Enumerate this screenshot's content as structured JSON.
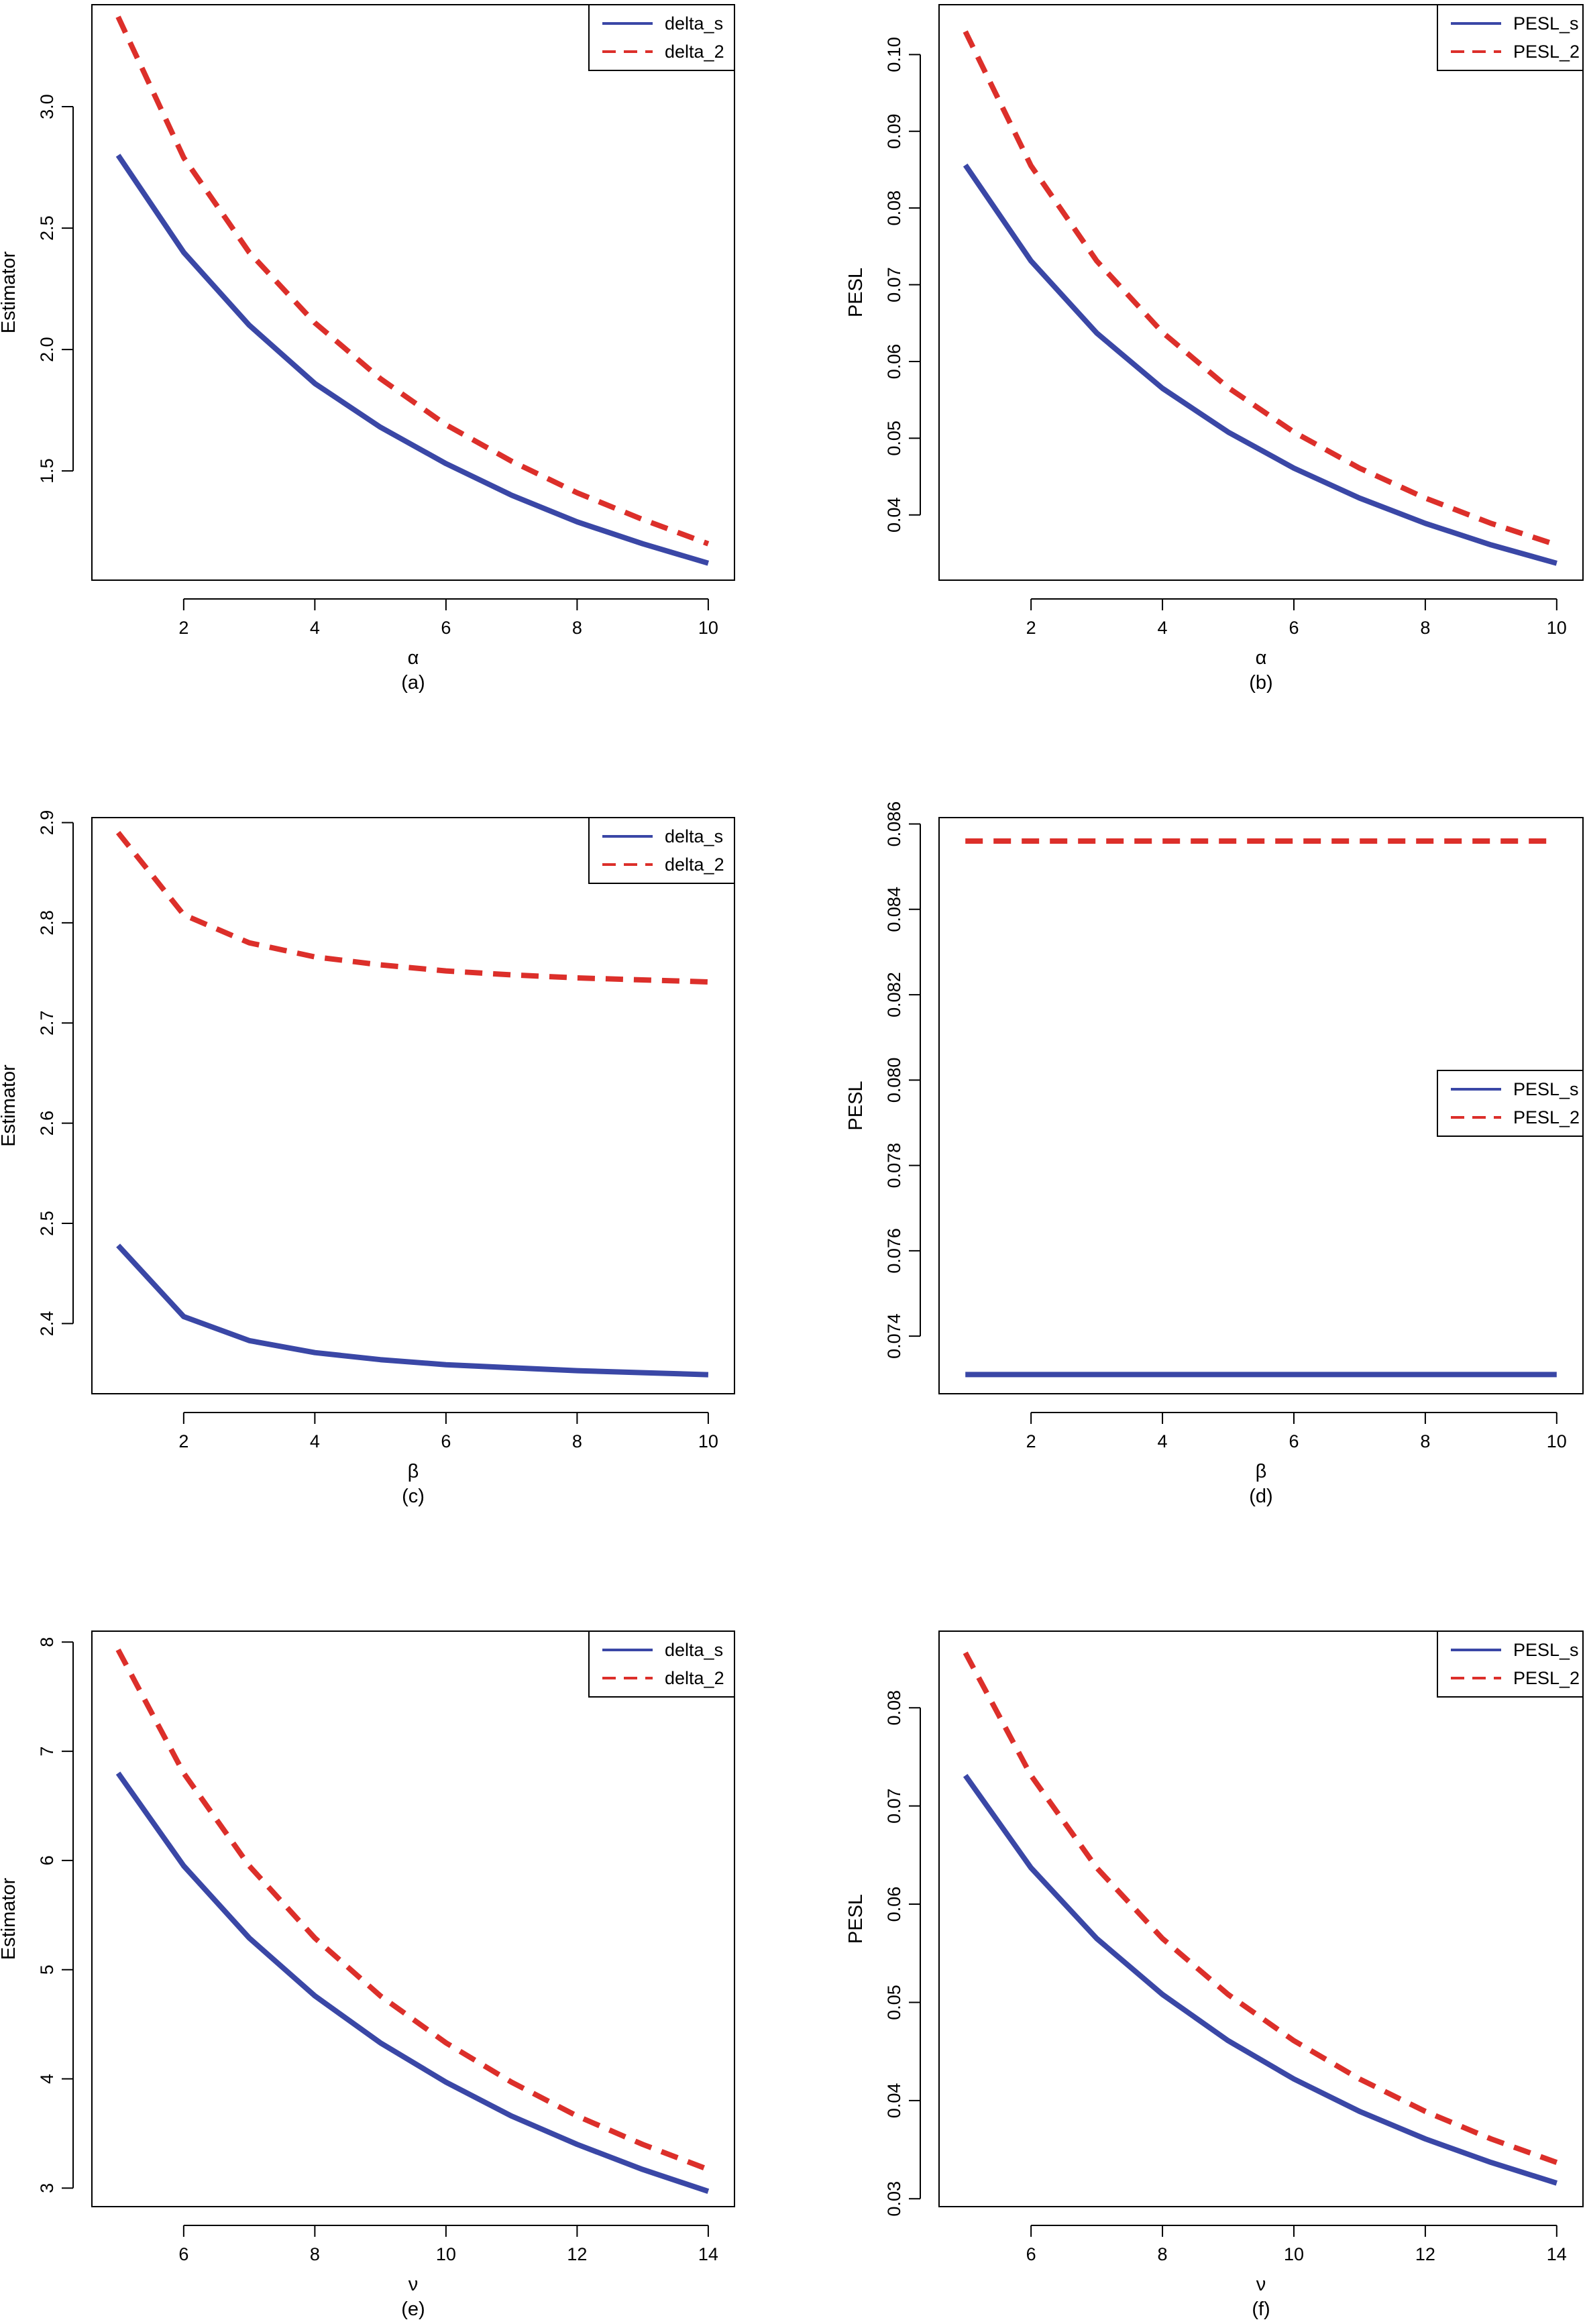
{
  "colors": {
    "s": "#3a47a6",
    "two": "#dc2f2a",
    "axis": "#000000"
  },
  "chart_data": [
    {
      "id": "a",
      "panel_label": "(a)",
      "type": "line",
      "xlabel": "α",
      "ylabel": "Estimator",
      "xlim": [
        0.6,
        10.4
      ],
      "ylim": [
        1.05,
        3.42
      ],
      "xticks": [
        2,
        4,
        6,
        8,
        10
      ],
      "yticks": [
        1.5,
        2.0,
        2.5,
        3.0
      ],
      "ytick_labels": [
        "1.5",
        "2.0",
        "2.5",
        "3.0"
      ],
      "legend": {
        "position": "top-right"
      },
      "x": [
        1,
        2,
        3,
        4,
        5,
        6,
        7,
        8,
        9,
        10
      ],
      "series": [
        {
          "name": "delta_s",
          "style": "solid",
          "values": [
            2.8,
            2.4,
            2.1,
            1.86,
            1.68,
            1.53,
            1.4,
            1.29,
            1.2,
            1.12
          ]
        },
        {
          "name": "delta_2",
          "style": "dashed",
          "values": [
            3.37,
            2.79,
            2.4,
            2.11,
            1.88,
            1.69,
            1.54,
            1.41,
            1.3,
            1.2
          ]
        }
      ]
    },
    {
      "id": "b",
      "panel_label": "(b)",
      "type": "line",
      "xlabel": "α",
      "ylabel": "PESL",
      "xlim": [
        0.6,
        10.4
      ],
      "ylim": [
        0.0315,
        0.1065
      ],
      "xticks": [
        2,
        4,
        6,
        8,
        10
      ],
      "yticks": [
        0.04,
        0.05,
        0.06,
        0.07,
        0.08,
        0.09,
        0.1
      ],
      "ytick_labels": [
        "0.04",
        "0.05",
        "0.06",
        "0.07",
        "0.08",
        "0.09",
        "0.10"
      ],
      "legend": {
        "position": "top-right"
      },
      "x": [
        1,
        2,
        3,
        4,
        5,
        6,
        7,
        8,
        9,
        10
      ],
      "series": [
        {
          "name": "PESL_s",
          "style": "solid",
          "values": [
            0.0856,
            0.0731,
            0.0637,
            0.0565,
            0.0508,
            0.0461,
            0.0422,
            0.0389,
            0.0361,
            0.0337
          ]
        },
        {
          "name": "PESL_2",
          "style": "dashed",
          "values": [
            0.103,
            0.0855,
            0.0731,
            0.0638,
            0.0566,
            0.0508,
            0.0461,
            0.0422,
            0.0389,
            0.0361
          ]
        }
      ]
    },
    {
      "id": "c",
      "panel_label": "(c)",
      "type": "line",
      "xlabel": "β",
      "ylabel": "Estimator",
      "xlim": [
        0.6,
        10.4
      ],
      "ylim": [
        2.33,
        2.905
      ],
      "xticks": [
        2,
        4,
        6,
        8,
        10
      ],
      "yticks": [
        2.4,
        2.5,
        2.6,
        2.7,
        2.8,
        2.9
      ],
      "ytick_labels": [
        "2.4",
        "2.5",
        "2.6",
        "2.7",
        "2.8",
        "2.9"
      ],
      "legend": {
        "position": "top-right"
      },
      "x": [
        1,
        2,
        3,
        4,
        5,
        6,
        7,
        8,
        9,
        10
      ],
      "series": [
        {
          "name": "delta_s",
          "style": "solid",
          "values": [
            2.478,
            2.407,
            2.383,
            2.371,
            2.364,
            2.359,
            2.356,
            2.353,
            2.351,
            2.349
          ]
        },
        {
          "name": "delta_2",
          "style": "dashed",
          "values": [
            2.89,
            2.808,
            2.78,
            2.766,
            2.758,
            2.752,
            2.748,
            2.745,
            2.743,
            2.741
          ]
        }
      ]
    },
    {
      "id": "d",
      "panel_label": "(d)",
      "type": "line",
      "xlabel": "β",
      "ylabel": "PESL",
      "xlim": [
        0.6,
        10.4
      ],
      "ylim": [
        0.07265,
        0.08615
      ],
      "xticks": [
        2,
        4,
        6,
        8,
        10
      ],
      "yticks": [
        0.074,
        0.076,
        0.078,
        0.08,
        0.082,
        0.084,
        0.086
      ],
      "ytick_labels": [
        "0.074",
        "0.076",
        "0.078",
        "0.080",
        "0.082",
        "0.084",
        "0.086"
      ],
      "legend": {
        "position": "right"
      },
      "x": [
        1,
        2,
        3,
        4,
        5,
        6,
        7,
        8,
        9,
        10
      ],
      "series": [
        {
          "name": "PESL_s",
          "style": "solid",
          "values": [
            0.0731,
            0.0731,
            0.0731,
            0.0731,
            0.0731,
            0.0731,
            0.0731,
            0.0731,
            0.0731,
            0.0731
          ]
        },
        {
          "name": "PESL_2",
          "style": "dashed",
          "values": [
            0.0856,
            0.0856,
            0.0856,
            0.0856,
            0.0856,
            0.0856,
            0.0856,
            0.0856,
            0.0856,
            0.0856
          ]
        }
      ]
    },
    {
      "id": "e",
      "panel_label": "(e)",
      "type": "line",
      "xlabel": "ν",
      "ylabel": "Estimator",
      "xlim": [
        4.6,
        14.4
      ],
      "ylim": [
        2.83,
        8.1
      ],
      "xticks": [
        6,
        8,
        10,
        12,
        14
      ],
      "yticks": [
        3,
        4,
        5,
        6,
        7,
        8
      ],
      "ytick_labels": [
        "3",
        "4",
        "5",
        "6",
        "7",
        "8"
      ],
      "legend": {
        "position": "top-right"
      },
      "x": [
        5,
        6,
        7,
        8,
        9,
        10,
        11,
        12,
        13,
        14
      ],
      "series": [
        {
          "name": "delta_s",
          "style": "solid",
          "values": [
            6.8,
            5.95,
            5.29,
            4.76,
            4.33,
            3.97,
            3.66,
            3.4,
            3.17,
            2.97
          ]
        },
        {
          "name": "delta_2",
          "style": "dashed",
          "values": [
            7.93,
            6.8,
            5.95,
            5.29,
            4.76,
            4.33,
            3.97,
            3.66,
            3.4,
            3.17
          ]
        }
      ]
    },
    {
      "id": "f",
      "panel_label": "(f)",
      "type": "line",
      "xlabel": "ν",
      "ylabel": "PESL",
      "xlim": [
        4.6,
        14.4
      ],
      "ylim": [
        0.0292,
        0.0878
      ],
      "xticks": [
        6,
        8,
        10,
        12,
        14
      ],
      "yticks": [
        0.03,
        0.04,
        0.05,
        0.06,
        0.07,
        0.08
      ],
      "ytick_labels": [
        "0.03",
        "0.04",
        "0.05",
        "0.06",
        "0.07",
        "0.08"
      ],
      "legend": {
        "position": "top-right"
      },
      "x": [
        5,
        6,
        7,
        8,
        9,
        10,
        11,
        12,
        13,
        14
      ],
      "series": [
        {
          "name": "PESL_s",
          "style": "solid",
          "values": [
            0.0731,
            0.0637,
            0.0565,
            0.0508,
            0.0461,
            0.0422,
            0.0389,
            0.0361,
            0.0337,
            0.0316
          ]
        },
        {
          "name": "PESL_2",
          "style": "dashed",
          "values": [
            0.0856,
            0.0731,
            0.0637,
            0.0565,
            0.0508,
            0.0461,
            0.0422,
            0.0389,
            0.0361,
            0.0337
          ]
        }
      ]
    }
  ]
}
